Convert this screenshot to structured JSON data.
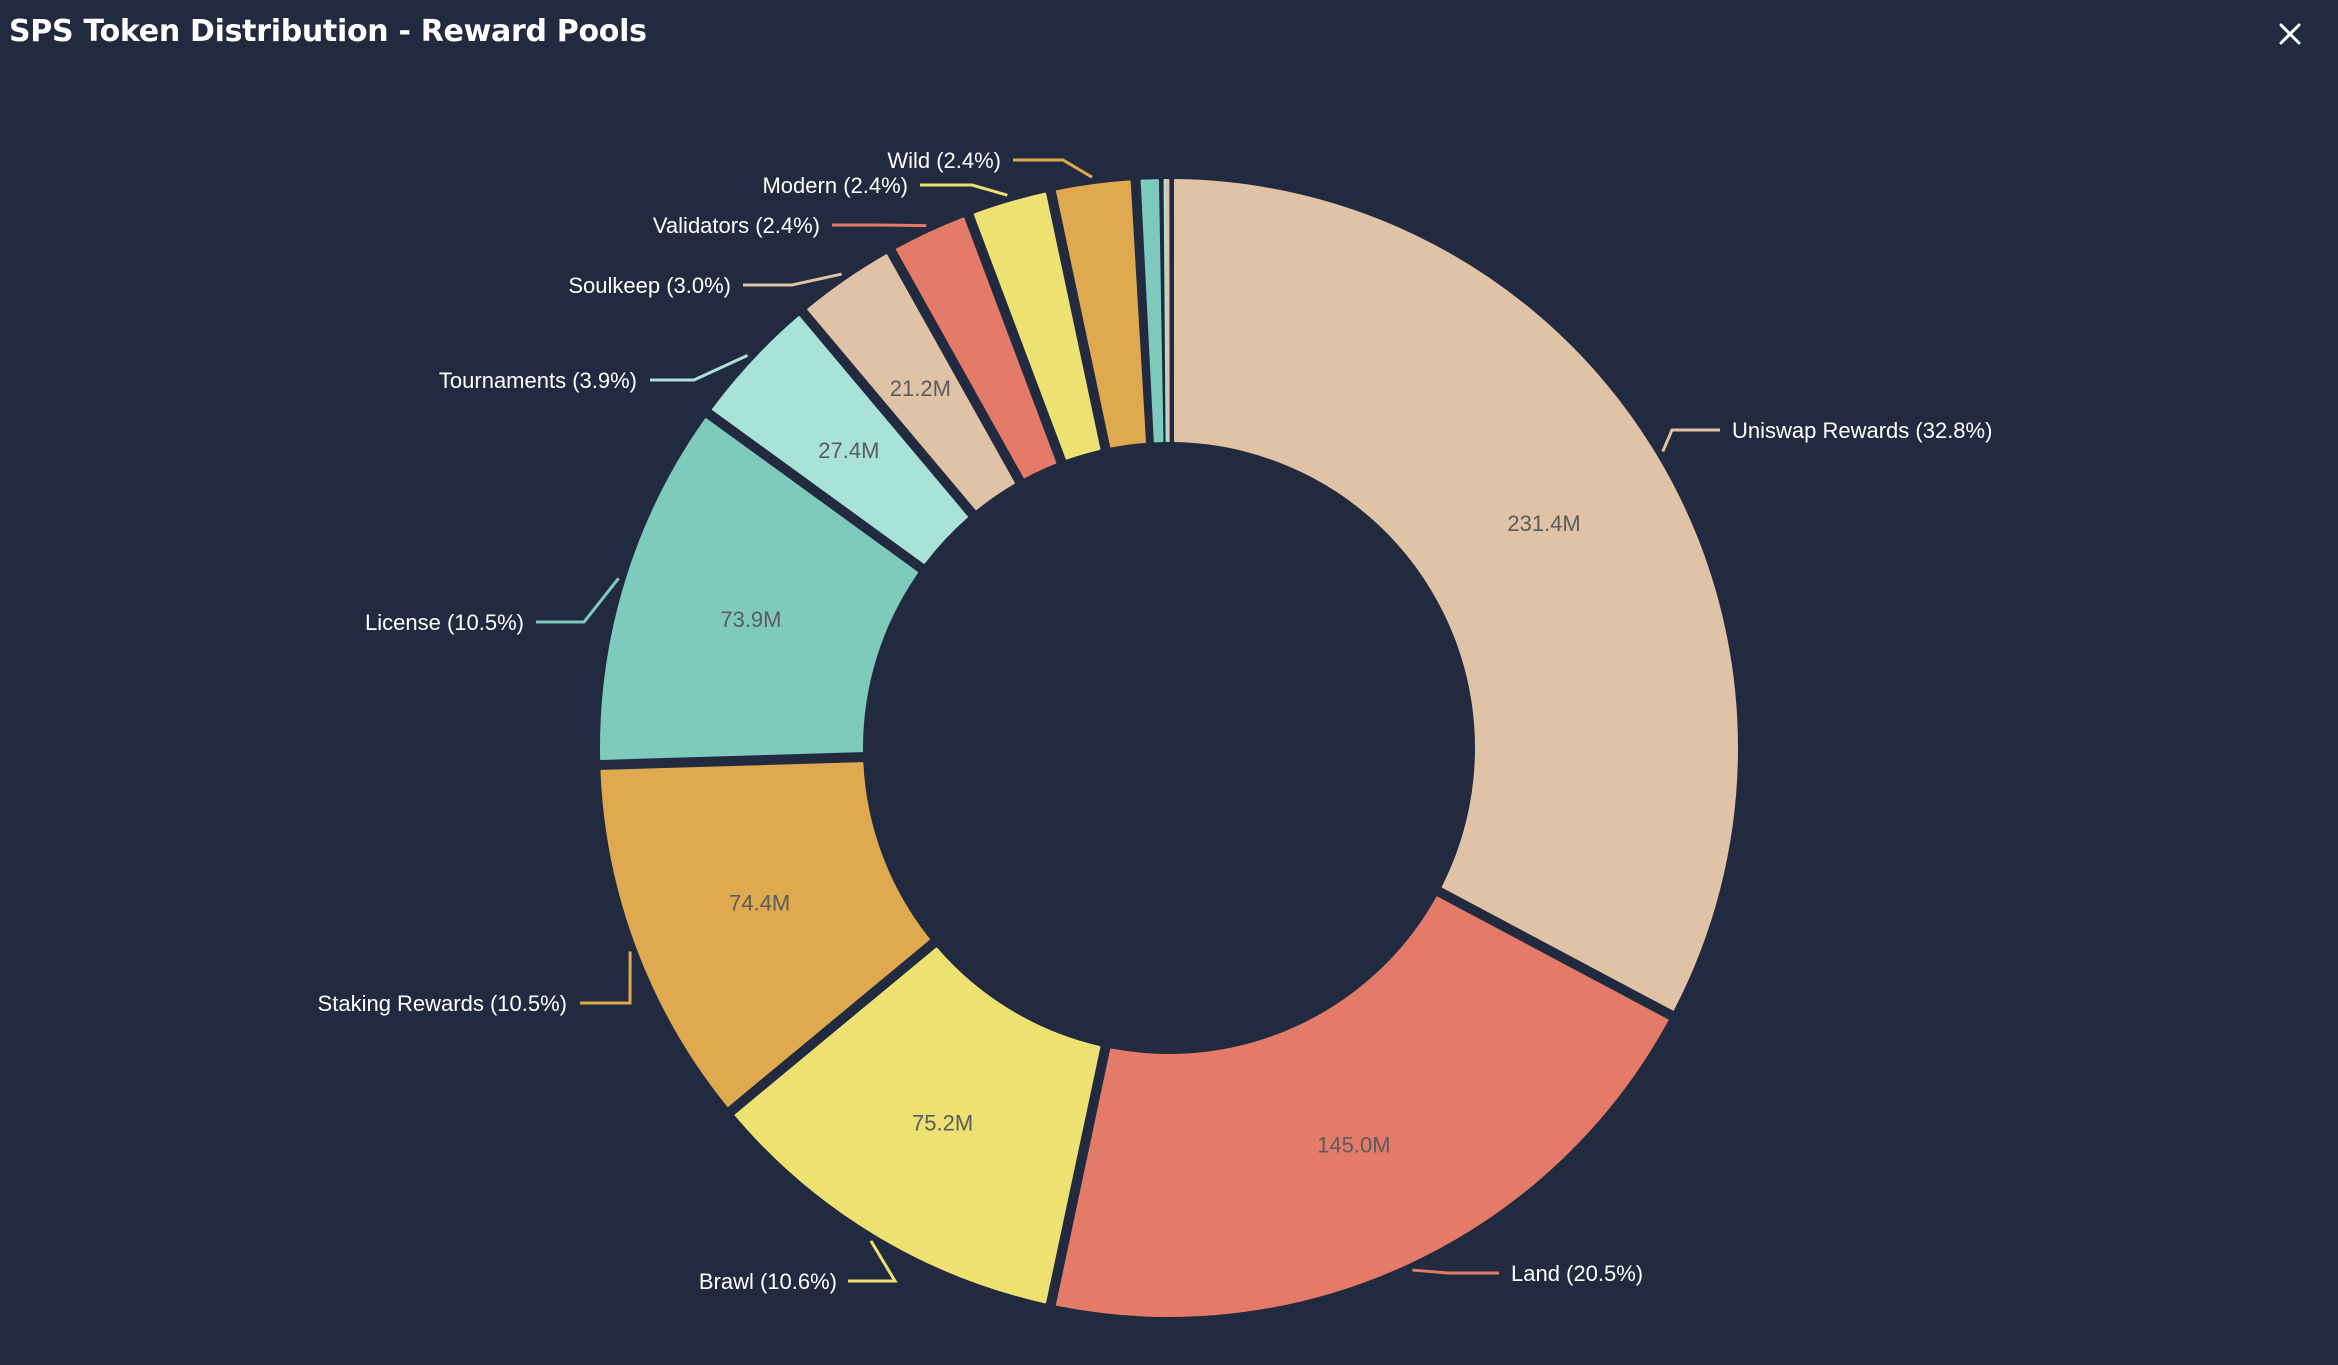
{
  "window": {
    "title": "SPS Token Distribution - Reward Pools",
    "close_icon": "close-icon"
  },
  "colors": {
    "background": "#222a3f",
    "title": "#ffffff",
    "label_text": "#ffffff",
    "value_text": "#5b5b5b"
  },
  "chart_data": {
    "type": "pie",
    "donut": true,
    "title": "",
    "slices": [
      {
        "label": "Uniswap Rewards (32.8%)",
        "value": 231.4,
        "value_label": "231.4M",
        "percent": 32.8,
        "color": "#e0c2a6"
      },
      {
        "label": "Land (20.5%)",
        "value": 145.0,
        "value_label": "145.0M",
        "percent": 20.5,
        "color": "#e47a68"
      },
      {
        "label": "Brawl (10.6%)",
        "value": 75.2,
        "value_label": "75.2M",
        "percent": 10.6,
        "color": "#ede172"
      },
      {
        "label": "Staking Rewards (10.5%)",
        "value": 74.4,
        "value_label": "74.4M",
        "percent": 10.5,
        "color": "#dfa94f"
      },
      {
        "label": "License (10.5%)",
        "value": 73.9,
        "value_label": "73.9M",
        "percent": 10.5,
        "color": "#7ecbbe"
      },
      {
        "label": "Tournaments (3.9%)",
        "value": 27.4,
        "value_label": "27.4M",
        "percent": 3.9,
        "color": "#a8e2d8"
      },
      {
        "label": "Soulkeep (3.0%)",
        "value": 21.2,
        "value_label": "21.2M",
        "percent": 3.0,
        "color": "#e0c2a6"
      },
      {
        "label": "Validators (2.4%)",
        "value": 16.9,
        "value_label": "",
        "percent": 2.4,
        "color": "#e47a68"
      },
      {
        "label": "Modern (2.4%)",
        "value": 16.9,
        "value_label": "",
        "percent": 2.4,
        "color": "#ede172"
      },
      {
        "label": "Wild (2.4%)",
        "value": 16.9,
        "value_label": "",
        "percent": 2.4,
        "color": "#dfa94f"
      },
      {
        "label": "",
        "value": 5.6,
        "value_label": "",
        "percent": 0.8,
        "color": "#7ecbbe"
      },
      {
        "label": "",
        "value": 0.5,
        "value_label": "",
        "percent": 0.07,
        "color": "#a8e2d8"
      },
      {
        "label": "",
        "value": 0.5,
        "value_label": "",
        "percent": 0.07,
        "color": "#e0c2a6"
      }
    ]
  }
}
